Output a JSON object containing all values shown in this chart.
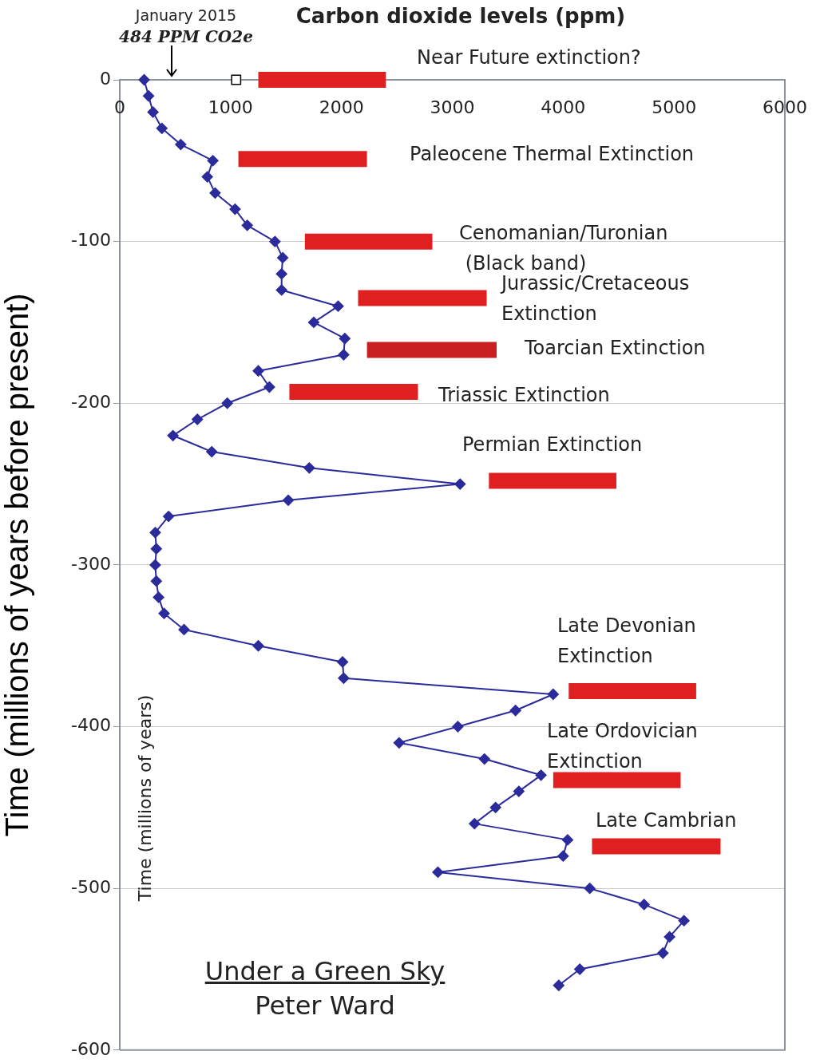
{
  "chart_data": {
    "type": "line",
    "xlabel": "Carbon dioxide levels (ppm)",
    "ylabel": "Time (millions of years before present)",
    "xlim": [
      0,
      6000
    ],
    "xticks": [
      0,
      1000,
      2000,
      3000,
      4000,
      5000,
      6000
    ],
    "ylim": [
      -600,
      0
    ],
    "yticks": [
      -600,
      -500,
      -400,
      -300,
      -200,
      -100,
      0
    ],
    "grid": "y",
    "legend": false,
    "series": [
      {
        "color": "#2b2b9b",
        "marker": "diamond",
        "x": [
          220,
          260,
          300,
          380,
          550,
          840,
          790,
          860,
          1040,
          1150,
          1400,
          1470,
          1460,
          1460,
          1970,
          1750,
          2030,
          2020,
          1250,
          1350,
          970,
          700,
          480,
          830,
          1710,
          3070,
          1520,
          440,
          320,
          330,
          320,
          330,
          350,
          400,
          580,
          1250,
          2010,
          2020,
          3910,
          3570,
          3050,
          2520,
          3290,
          3800,
          3600,
          3390,
          3200,
          4040,
          4000,
          2870,
          4240,
          4730,
          5090,
          4960,
          4900,
          4150,
          3960
        ],
        "values": [
          0,
          -10,
          -20,
          -30,
          -40,
          -50,
          -60,
          -70,
          -80,
          -90,
          -100,
          -110,
          -120,
          -130,
          -140,
          -150,
          -160,
          -170,
          -180,
          -190,
          -200,
          -210,
          -220,
          -230,
          -240,
          -250,
          -260,
          -270,
          -280,
          -290,
          -300,
          -310,
          -320,
          -330,
          -340,
          -350,
          -360,
          -370,
          -380,
          -390,
          -400,
          -410,
          -420,
          -430,
          -440,
          -450,
          -460,
          -470,
          -480,
          -490,
          -500,
          -510,
          -520,
          -530,
          -540,
          -550,
          -560
        ]
      },
      {
        "type": "scatter",
        "color": "#ffffff",
        "marker": "square",
        "x": [
          1050
        ],
        "values": [
          0
        ]
      },
      {
        "type": "line",
        "color": "#e02020",
        "marker": "none",
        "x": [
          1250,
          2400
        ],
        "values": [
          0,
          0
        ]
      },
      {
        "type": "line",
        "color": "#e02020",
        "marker": "none",
        "x": [
          1070,
          2230
        ],
        "values": [
          -49,
          -49
        ]
      },
      {
        "type": "line",
        "color": "#e02020",
        "marker": "none",
        "x": [
          1670,
          2820
        ],
        "values": [
          -100,
          -100
        ]
      },
      {
        "type": "line",
        "color": "#e02020",
        "marker": "none",
        "x": [
          2150,
          3310
        ],
        "values": [
          -135,
          -135
        ]
      },
      {
        "type": "line",
        "color": "#c82020",
        "marker": "none",
        "x": [
          2230,
          3400
        ],
        "values": [
          -167,
          -167
        ]
      },
      {
        "type": "line",
        "color": "#e02020",
        "marker": "none",
        "x": [
          1530,
          2690
        ],
        "values": [
          -193,
          -193
        ]
      },
      {
        "type": "line",
        "color": "#e02020",
        "marker": "none",
        "x": [
          3330,
          4480
        ],
        "values": [
          -248,
          -248
        ]
      },
      {
        "type": "line",
        "color": "#e02020",
        "marker": "none",
        "x": [
          4050,
          5200
        ],
        "values": [
          -378,
          -378
        ]
      },
      {
        "type": "line",
        "color": "#e02020",
        "marker": "none",
        "x": [
          3910,
          5060
        ],
        "values": [
          -433,
          -433
        ]
      },
      {
        "type": "line",
        "color": "#e02020",
        "marker": "none",
        "x": [
          4260,
          5420
        ],
        "values": [
          -474,
          -474
        ]
      }
    ],
    "annotations": [
      "January 2015",
      "484 PPM CO2e",
      "Near Future extinction?",
      "Paleocene Thermal Extinction",
      "Cenomanian/Turonian\n (Black band)",
      "Jurassic/Cretaceous\nExtinction",
      "Toarcian Extinction",
      "Triassic Extinction",
      "Permian Extinction",
      "Late Devonian\nExtinction",
      "Late Ordovician\nExtinction",
      "Late Cambrian",
      "Time (millions of years)",
      "Under a Green Sky",
      "Peter Ward"
    ]
  }
}
